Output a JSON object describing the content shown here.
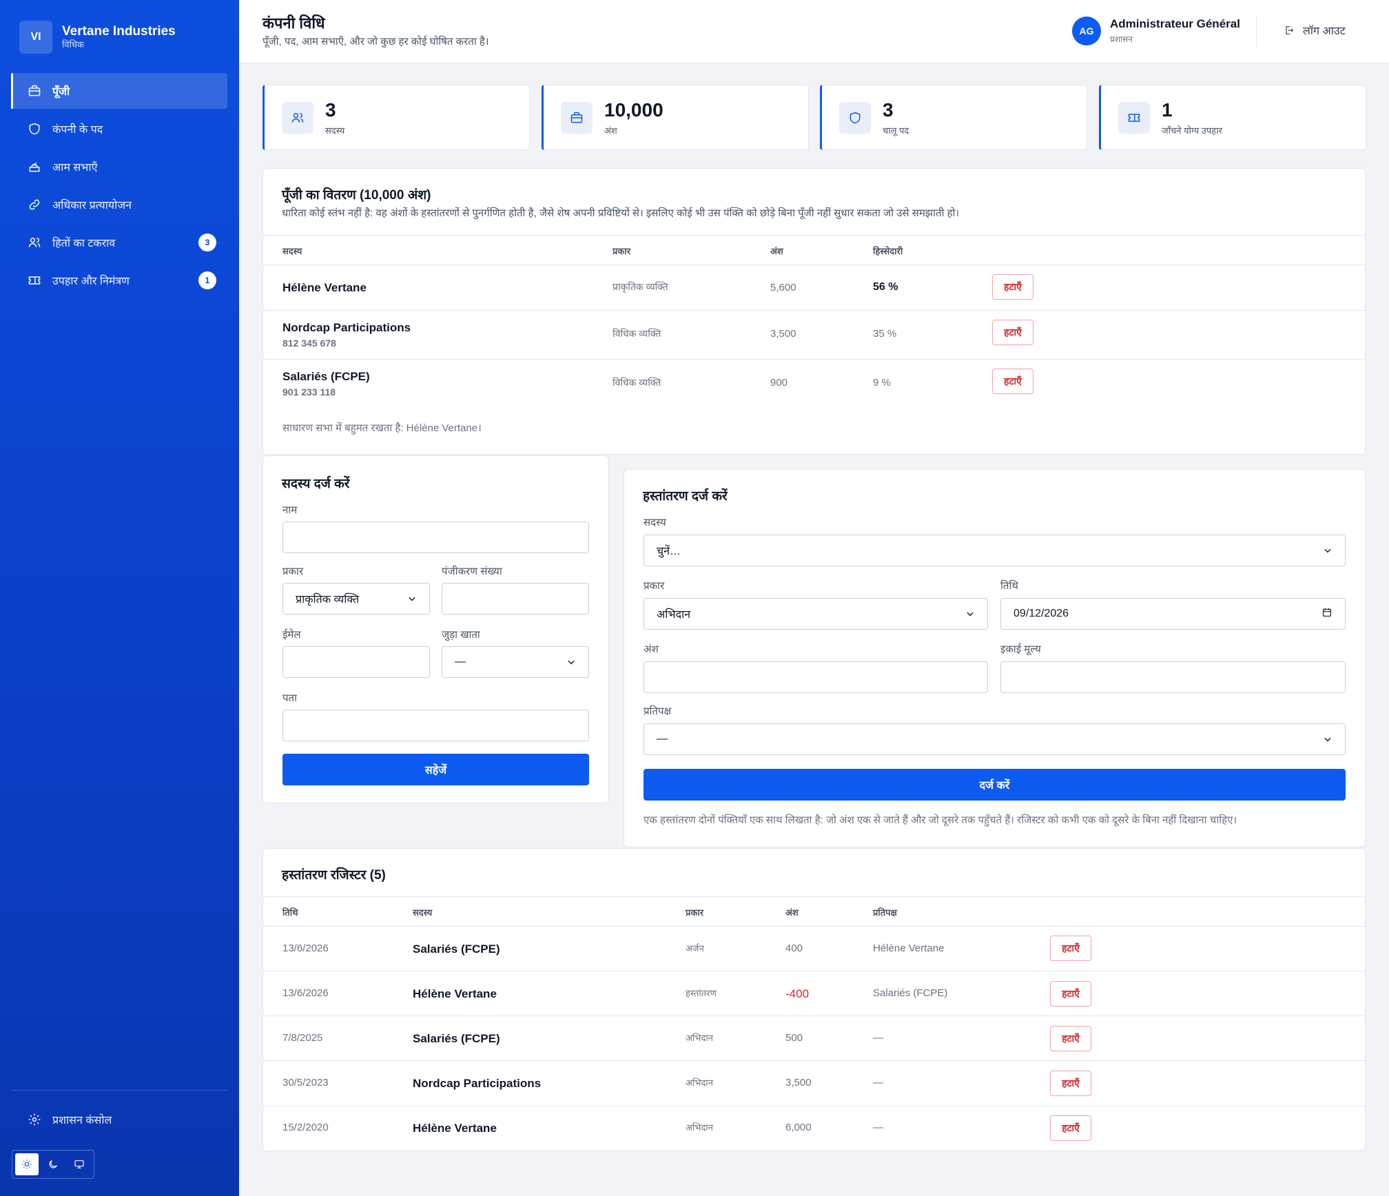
{
  "brand": {
    "initials": "VI",
    "name": "Vertane Industries",
    "subtitle": "विधिक"
  },
  "nav": {
    "items": [
      {
        "label": "पूँजी",
        "icon": "briefcase-icon"
      },
      {
        "label": "कंपनी के पद",
        "icon": "shield-icon"
      },
      {
        "label": "आम सभाएँ",
        "icon": "ballot-box-icon"
      },
      {
        "label": "अधिकार प्रत्यायोजन",
        "icon": "link-icon"
      },
      {
        "label": "हितों का टकराव",
        "icon": "users-icon",
        "badge": "3"
      },
      {
        "label": "उपहार और निमंत्रण",
        "icon": "ticket-icon",
        "badge": "1"
      }
    ],
    "admin_console": "प्रशासन कंसोल"
  },
  "header": {
    "title": "कंपनी विधि",
    "subtitle": "पूँजी, पद, आम सभाएँ, और जो कुछ हर कोई घोषित करता है।",
    "user_initials": "AG",
    "user_name": "Administrateur Général",
    "user_role": "प्रशासन",
    "logout": "लॉग आउट"
  },
  "stats": [
    {
      "value": "3",
      "label": "सदस्य",
      "icon": "users-icon"
    },
    {
      "value": "10,000",
      "label": "अंश",
      "icon": "briefcase-icon"
    },
    {
      "value": "3",
      "label": "चालू पद",
      "icon": "shield-icon"
    },
    {
      "value": "1",
      "label": "जाँचने योग्य उपहार",
      "icon": "ticket-icon"
    }
  ],
  "distribution": {
    "title": "पूँजी का वितरण (10,000 अंश)",
    "description": "धारिता कोई स्तंभ नहीं है: वह अंशों के हस्तांतरणों से पुनर्गणित होती है, जैसे शेष अपनी प्रविष्टियों से। इसलिए कोई भी उस पंक्ति को छोड़े बिना पूँजी नहीं सुधार सकता जो उसे समझाती हो।",
    "columns": {
      "member": "सदस्य",
      "type": "प्रकार",
      "shares": "अंश",
      "stake": "हिस्सेदारी"
    },
    "rows": [
      {
        "member": "Hélène Vertane",
        "reg": "",
        "type": "प्राकृतिक व्यक्ति",
        "shares": "5,600",
        "stake": "56 %"
      },
      {
        "member": "Nordcap Participations",
        "reg": "812 345 678",
        "type": "विधिक व्यक्ति",
        "shares": "3,500",
        "stake": "35 %"
      },
      {
        "member": "Salariés (FCPE)",
        "reg": "901 233 118",
        "type": "विधिक व्यक्ति",
        "shares": "900",
        "stake": "9 %"
      }
    ],
    "delete_label": "हटाएँ",
    "footnote": "साधारण सभा में बहुमत रखता है: Hélène Vertane।"
  },
  "member_form": {
    "title": "सदस्य दर्ज करें",
    "name_label": "नाम",
    "type_label": "प्रकार",
    "type_value": "प्राकृतिक व्यक्ति",
    "reg_label": "पंजीकरण संख्या",
    "email_label": "ईमेल",
    "account_label": "जुड़ा खाता",
    "account_value": "—",
    "address_label": "पता",
    "save": "सहेजें"
  },
  "transfer_form": {
    "title": "हस्तांतरण दर्ज करें",
    "member_label": "सदस्य",
    "member_value": "चुनें…",
    "type_label": "प्रकार",
    "type_value": "अभिदान",
    "date_label": "तिथि",
    "date_value": "09/12/2026",
    "shares_label": "अंश",
    "unit_price_label": "इकाई मूल्य",
    "counterparty_label": "प्रतिपक्ष",
    "counterparty_value": "—",
    "submit": "दर्ज करें",
    "note": "एक हस्तांतरण दोनों पंक्तियाँ एक साथ लिखता है: जो अंश एक से जाते हैं और जो दूसरे तक पहुँचते हैं। रजिस्टर को कभी एक को दूसरे के बिना नहीं दिखाना चाहिए।"
  },
  "register": {
    "title": "हस्तांतरण रजिस्टर (5)",
    "columns": {
      "date": "तिथि",
      "member": "सदस्य",
      "type": "प्रकार",
      "shares": "अंश",
      "counterparty": "प्रतिपक्ष"
    },
    "rows": [
      {
        "date": "13/6/2026",
        "member": "Salariés (FCPE)",
        "type": "अर्जन",
        "shares": "400",
        "counterparty": "Hélène Vertane"
      },
      {
        "date": "13/6/2026",
        "member": "Hélène Vertane",
        "type": "हस्तांतरण",
        "shares": "-400",
        "counterparty": "Salariés (FCPE)"
      },
      {
        "date": "7/8/2025",
        "member": "Salariés (FCPE)",
        "type": "अभिदान",
        "shares": "500",
        "counterparty": "—"
      },
      {
        "date": "30/5/2023",
        "member": "Nordcap Participations",
        "type": "अभिदान",
        "shares": "3,500",
        "counterparty": "—"
      },
      {
        "date": "15/2/2020",
        "member": "Hélène Vertane",
        "type": "अभिदान",
        "shares": "6,000",
        "counterparty": "—"
      }
    ],
    "delete_label": "हटाएँ"
  },
  "colors": {
    "primary": "#0d5bf0",
    "sidebar": "#0b40c9",
    "danger": "#dc2626"
  }
}
